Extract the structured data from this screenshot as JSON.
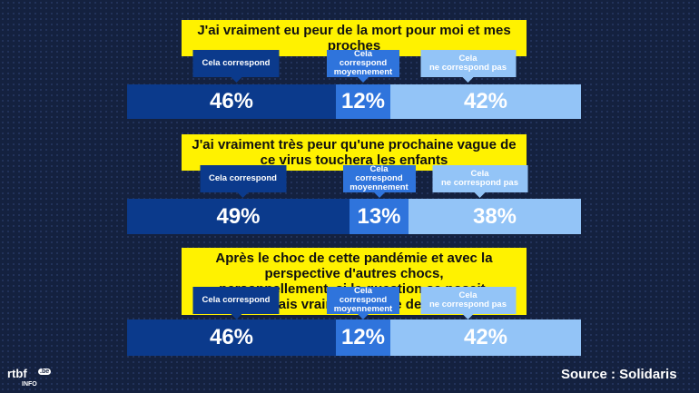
{
  "chart_data": [
    {
      "type": "stacked-bar",
      "title": "J'ai vraiment eu peur de la mort pour moi et mes proches",
      "categories": [
        "Cela correspond",
        "Cela\ncorrespond\nmoyennement",
        "Cela\nne correspond pas"
      ],
      "values": [
        46,
        12,
        42
      ],
      "value_labels": [
        "46%",
        "12%",
        "42%"
      ],
      "colors": [
        "#0b3a8c",
        "#2f74dc",
        "#93c4f7"
      ]
    },
    {
      "type": "stacked-bar",
      "title": "J'ai vraiment très peur qu'une prochaine vague de ce virus touchera les enfants",
      "categories": [
        "Cela correspond",
        "Cela\ncorrespond\nmoyennement",
        "Cela\nne correspond pas"
      ],
      "values": [
        49,
        13,
        38
      ],
      "value_labels": [
        "49%",
        "13%",
        "38%"
      ],
      "colors": [
        "#0b3a8c",
        "#2f74dc",
        "#93c4f7"
      ]
    },
    {
      "type": "stacked-bar",
      "title": "Après le choc de cette pandémie et avec la perspective d'autres chocs,\npersonnellement, si la question se posait, j'hésiterais vraiment à faire des enfants",
      "categories": [
        "Cela correspond",
        "Cela\ncorrespond\nmoyennement",
        "Cela\nne correspond pas"
      ],
      "values": [
        46,
        12,
        42
      ],
      "value_labels": [
        "46%",
        "12%",
        "42%"
      ],
      "colors": [
        "#0b3a8c",
        "#2f74dc",
        "#93c4f7"
      ]
    }
  ],
  "source": "Source : Solidaris",
  "logo": {
    "name": "rtbf",
    "domain": ".be",
    "sub": "INFO"
  }
}
